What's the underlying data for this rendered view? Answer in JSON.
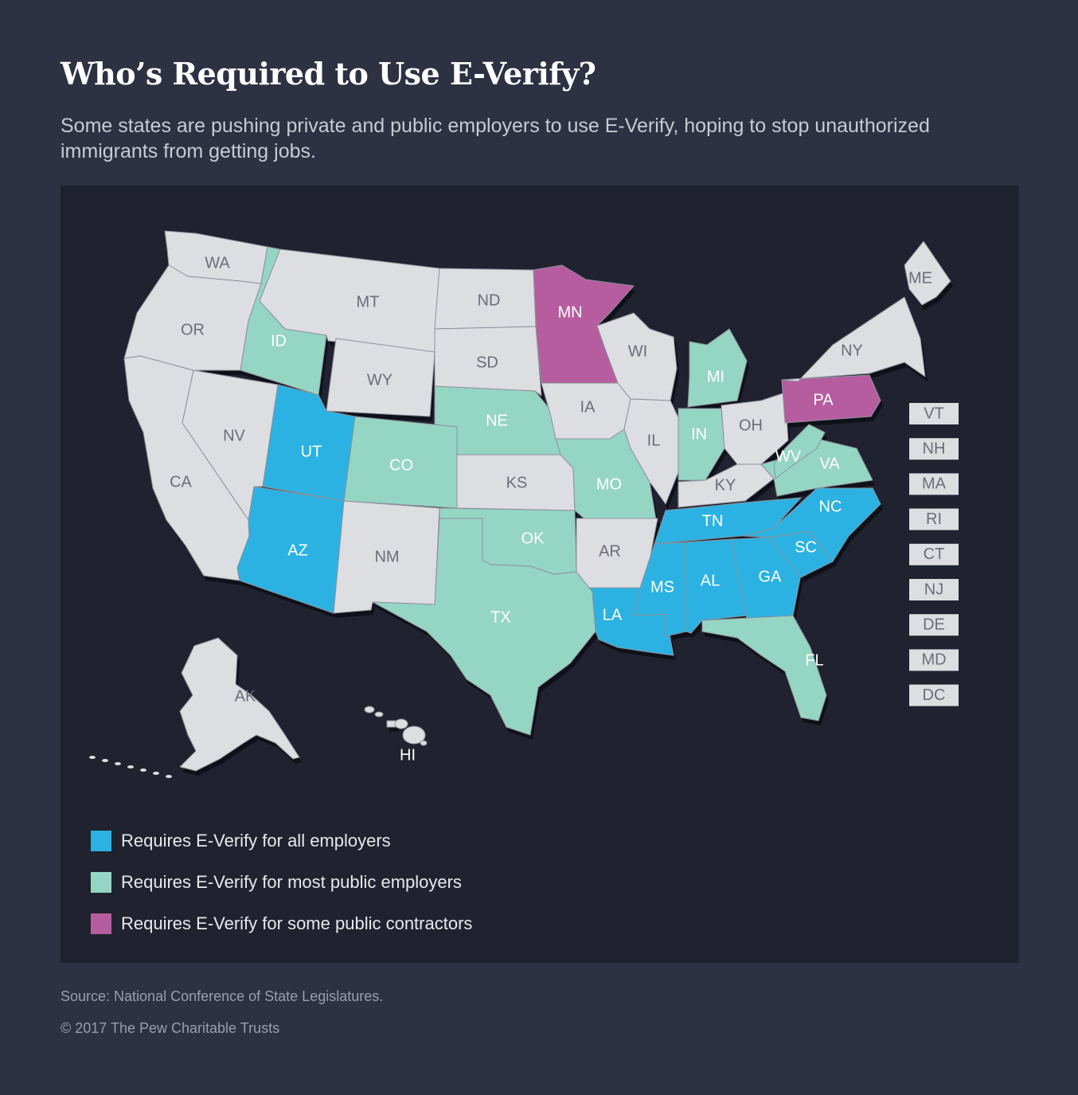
{
  "title": "Who’s Required to Use E-Verify?",
  "subtitle": "Some states are pushing private and public employers to use E-Verify, hoping to stop unauthorized immigrants from getting jobs.",
  "colors": {
    "background": "#2d3142",
    "panel": "#20232f",
    "all_employers": "#2bb2e2",
    "most_public": "#95d5c4",
    "some_contractors": "#b65da0",
    "no_requirement": "#dddee2",
    "state_border": "#8e919b",
    "label_light": "#ffffff",
    "label_dark": "#6b6e78"
  },
  "legend": [
    {
      "category": "all_employers",
      "label": "Requires E-Verify for all employers"
    },
    {
      "category": "most_public",
      "label": "Requires E-Verify for most public employers"
    },
    {
      "category": "some_contractors",
      "label": "Requires E-Verify for some public contractors"
    }
  ],
  "states": {
    "WA": "none",
    "OR": "none",
    "CA": "none",
    "NV": "none",
    "ID": "most_public",
    "MT": "none",
    "WY": "none",
    "UT": "all_employers",
    "CO": "most_public",
    "AZ": "all_employers",
    "NM": "none",
    "ND": "none",
    "SD": "none",
    "NE": "most_public",
    "KS": "none",
    "OK": "most_public",
    "TX": "most_public",
    "MN": "some_contractors",
    "IA": "none",
    "MO": "most_public",
    "AR": "none",
    "LA": "all_employers",
    "WI": "none",
    "IL": "none",
    "MI": "most_public",
    "IN": "most_public",
    "OH": "none",
    "KY": "none",
    "TN": "all_employers",
    "MS": "all_employers",
    "AL": "all_employers",
    "GA": "all_employers",
    "FL": "most_public",
    "SC": "all_employers",
    "NC": "all_employers",
    "VA": "most_public",
    "WV": "most_public",
    "PA": "some_contractors",
    "NY": "none",
    "ME": "none",
    "AK": "none",
    "HI": "none",
    "VT": "none",
    "NH": "none",
    "MA": "none",
    "RI": "none",
    "CT": "none",
    "NJ": "none",
    "DE": "none",
    "MD": "none",
    "DC": "none"
  },
  "small_states": [
    "VT",
    "NH",
    "MA",
    "RI",
    "CT",
    "NJ",
    "DE",
    "MD",
    "DC"
  ],
  "footer": {
    "source": "Source: National Conference of State Legislatures.",
    "copyright": "© 2017 The Pew Charitable Trusts"
  }
}
